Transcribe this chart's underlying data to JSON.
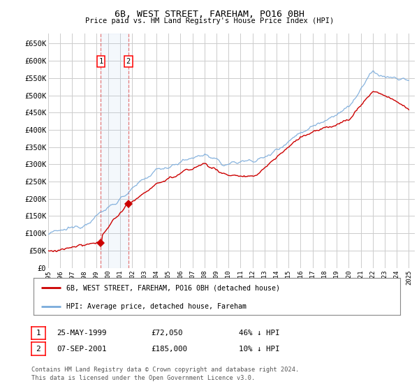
{
  "title": "6B, WEST STREET, FAREHAM, PO16 0BH",
  "subtitle": "Price paid vs. HM Land Registry's House Price Index (HPI)",
  "ylabel_ticks": [
    "£0",
    "£50K",
    "£100K",
    "£150K",
    "£200K",
    "£250K",
    "£300K",
    "£350K",
    "£400K",
    "£450K",
    "£500K",
    "£550K",
    "£600K",
    "£650K"
  ],
  "ytick_values": [
    0,
    50000,
    100000,
    150000,
    200000,
    250000,
    300000,
    350000,
    400000,
    450000,
    500000,
    550000,
    600000,
    650000
  ],
  "ylim": [
    0,
    680000
  ],
  "xlim_start": 1995.0,
  "xlim_end": 2025.5,
  "hpi_color": "#7aabdb",
  "price_color": "#cc0000",
  "bg_color": "#ffffff",
  "grid_color": "#cccccc",
  "transaction1_year": 1999.38,
  "transaction2_year": 2001.67,
  "transaction1_price": 72050,
  "transaction2_price": 185000,
  "legend_label_price": "6B, WEST STREET, FAREHAM, PO16 0BH (detached house)",
  "legend_label_hpi": "HPI: Average price, detached house, Fareham",
  "table_row1_num": "1",
  "table_row1_date": "25-MAY-1999",
  "table_row1_price": "£72,050",
  "table_row1_hpi": "46% ↓ HPI",
  "table_row2_num": "2",
  "table_row2_date": "07-SEP-2001",
  "table_row2_price": "£185,000",
  "table_row2_hpi": "10% ↓ HPI",
  "footnote": "Contains HM Land Registry data © Crown copyright and database right 2024.\nThis data is licensed under the Open Government Licence v3.0."
}
